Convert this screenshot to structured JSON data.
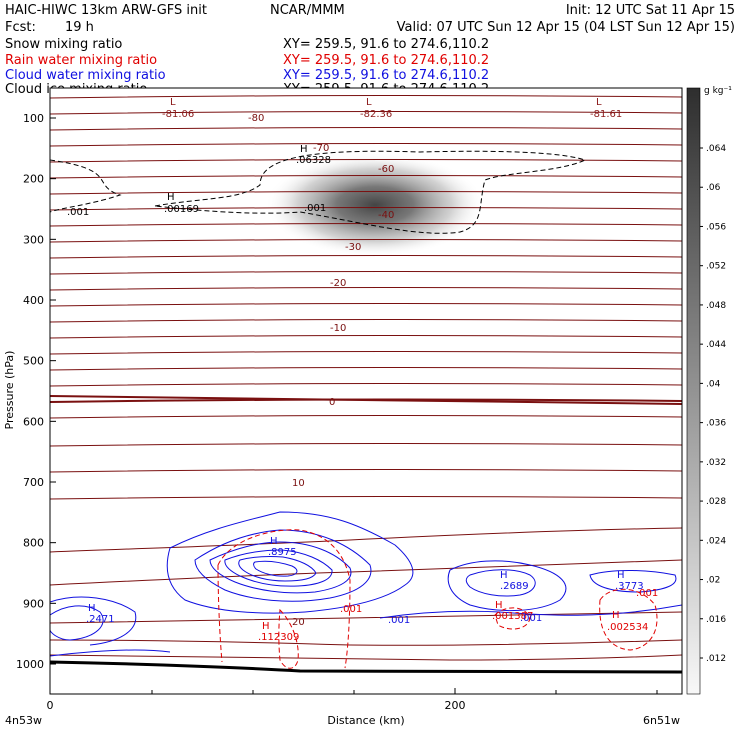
{
  "header": {
    "title_left": "HAIC-HIWC 13km ARW-GFS init",
    "title_center": "NCAR/MMM",
    "init": "Init: 12 UTC Sat 11 Apr 15",
    "fcst_label": "Fcst:",
    "fcst_value": "19 h",
    "valid": "Valid: 07 UTC Sun 12 Apr 15 (04 LST Sun 12 Apr 15)",
    "fields": [
      {
        "name": "Snow mixing ratio",
        "xy": "XY= 259.5, 91.6 to 274.6,110.2",
        "color": "#000000"
      },
      {
        "name": "Rain water mixing ratio",
        "xy": "XY= 259.5, 91.6 to 274.6,110.2",
        "color": "#e00000"
      },
      {
        "name": "Cloud water mixing ratio",
        "xy": "XY= 259.5, 91.6 to 274.6,110.2",
        "color": "#1010e0"
      },
      {
        "name": "Cloud ice mixing ratio",
        "xy": "XY= 259.5, 91.6 to 274.6,110.2",
        "color": "#000000"
      }
    ]
  },
  "chart_data": {
    "type": "cross-section",
    "ylabel": "Pressure (hPa)",
    "xlabel": "Distance (km)",
    "x_left_label": "4n53w",
    "x_right_label": "6n51w",
    "y_ticks": [
      100,
      200,
      300,
      400,
      500,
      600,
      700,
      800,
      900,
      1000
    ],
    "x_ticks": [
      0,
      200
    ],
    "colorbar": {
      "unit": "g kg⁻¹",
      "ticks": [
        ".064",
        ".06",
        ".056",
        ".052",
        ".048",
        ".044",
        ".04",
        ".036",
        ".032",
        ".028",
        ".024",
        ".02",
        ".016",
        ".012"
      ]
    },
    "temperature_labels": [
      "-80",
      "-70",
      "-60",
      "-40",
      "-30",
      "-20",
      "-10",
      "0",
      "10",
      "20"
    ],
    "extrema_labels": [
      {
        "mark": "L",
        "value": "-81.06",
        "color": "#8b1a1a"
      },
      {
        "mark": "L",
        "value": "-82.36",
        "color": "#8b1a1a"
      },
      {
        "mark": "L",
        "value": "-81.61",
        "color": "#8b1a1a"
      },
      {
        "mark": "H",
        "value": ".06328",
        "color": "#000000"
      },
      {
        "mark": "H",
        "value": ".00169",
        "color": "#000000"
      },
      {
        "mark": "H",
        "value": ".8975",
        "color": "#1010e0"
      },
      {
        "mark": "H",
        "value": ".2471",
        "color": "#1010e0"
      },
      {
        "mark": "H",
        "value": ".2689",
        "color": "#1010e0"
      },
      {
        "mark": "H",
        "value": ".3773",
        "color": "#1010e0"
      },
      {
        "mark": "H",
        "value": ".112309",
        "color": "#e00000"
      },
      {
        "mark": "H",
        "value": ".001387",
        "color": "#e00000"
      },
      {
        "mark": "H",
        "value": ".002534",
        "color": "#e00000"
      }
    ],
    "contour_labels": [
      {
        "value": ".001",
        "color": "#000000"
      },
      {
        "value": ".001",
        "color": "#000000"
      },
      {
        "value": ".001",
        "color": "#1010e0"
      },
      {
        "value": ".001",
        "color": "#1010e0"
      },
      {
        "value": ".001",
        "color": "#e00000"
      },
      {
        "value": ".001",
        "color": "#e00000"
      }
    ]
  }
}
